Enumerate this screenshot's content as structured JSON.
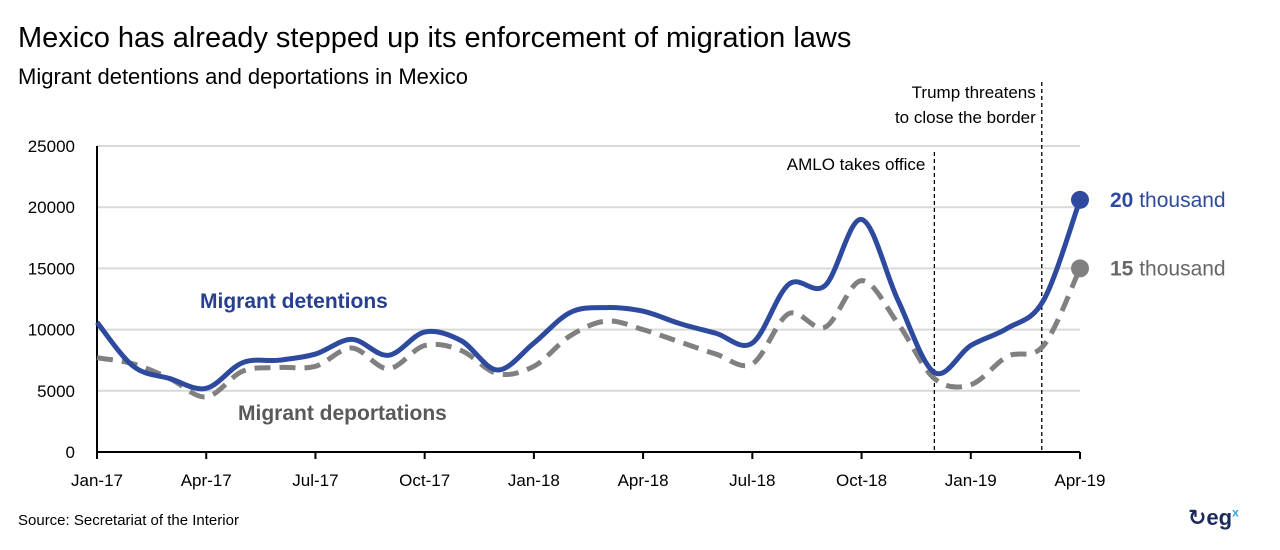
{
  "title": "Mexico has already stepped up its enforcement of migration laws",
  "subtitle": "Migrant detentions and deportations in Mexico",
  "source": "Source: Secretariat of the Interior",
  "logo": "egx",
  "chart_data": {
    "type": "line",
    "categories": [
      "Jan-17",
      "Feb-17",
      "Mar-17",
      "Apr-17",
      "May-17",
      "Jun-17",
      "Jul-17",
      "Aug-17",
      "Sep-17",
      "Oct-17",
      "Nov-17",
      "Dec-17",
      "Jan-18",
      "Feb-18",
      "Mar-18",
      "Apr-18",
      "May-18",
      "Jun-18",
      "Jul-18",
      "Aug-18",
      "Sep-18",
      "Oct-18",
      "Nov-18",
      "Dec-18",
      "Jan-19",
      "Feb-19",
      "Mar-19",
      "Apr-19"
    ],
    "x_tick_labels": [
      "Jan-17",
      "Apr-17",
      "Jul-17",
      "Oct-17",
      "Jan-18",
      "Apr-18",
      "Jul-18",
      "Oct-18",
      "Jan-19",
      "Apr-19"
    ],
    "y_tick_labels": [
      "0",
      "5000",
      "10000",
      "15000",
      "20000",
      "25000"
    ],
    "ylim": [
      0,
      25000
    ],
    "grid": "horizontal",
    "series": [
      {
        "name": "Migrant detentions",
        "color": "#2e4a9e",
        "style": "solid",
        "values": [
          10600,
          7000,
          6000,
          5200,
          7300,
          7500,
          8000,
          9200,
          7900,
          9800,
          9100,
          6700,
          8900,
          11400,
          11800,
          11500,
          10500,
          9700,
          8900,
          13700,
          13600,
          19000,
          12400,
          6500,
          8700,
          10100,
          12400,
          20600
        ],
        "end_label_bold": "20",
        "end_label_rest": " thousand"
      },
      {
        "name": "Migrant deportations",
        "color": "#808080",
        "style": "dashed",
        "values": [
          7700,
          7200,
          6000,
          4500,
          6600,
          6900,
          7000,
          8500,
          6800,
          8700,
          8300,
          6400,
          7000,
          9500,
          10700,
          10000,
          9000,
          8000,
          7200,
          11300,
          10200,
          14000,
          10500,
          6000,
          5500,
          7800,
          8700,
          15000
        ],
        "end_label_bold": "15",
        "end_label_rest": " thousand"
      }
    ],
    "annotations": [
      {
        "text": "AMLO takes office",
        "month_index": 23
      },
      {
        "text_line1": "Trump threatens",
        "text_line2": "to close the border",
        "month_index": 25.95
      }
    ]
  }
}
